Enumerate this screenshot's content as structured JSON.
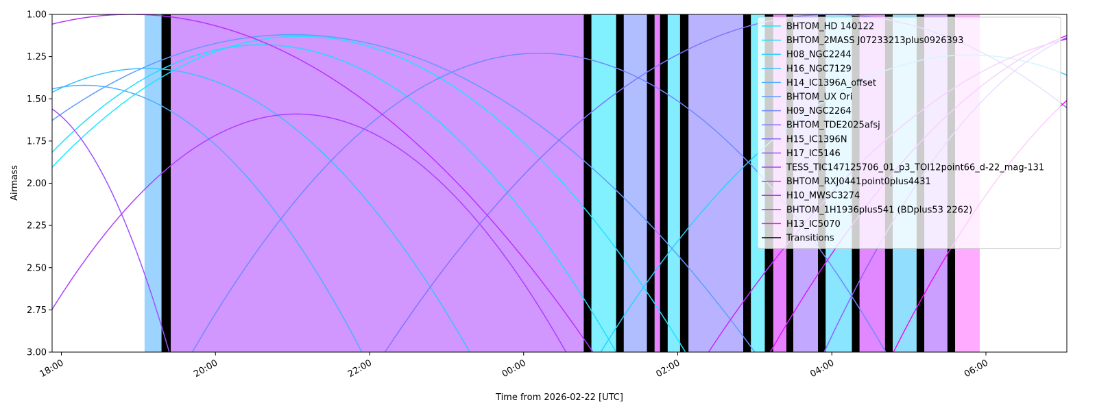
{
  "chart_data": {
    "type": "line",
    "xlabel": "Time from 2026-02-22 [UTC]",
    "ylabel": "Airmass",
    "xlim": [
      17.88,
      31.05
    ],
    "ylim": [
      3.0,
      1.0
    ],
    "y_inverted": true,
    "grid": false,
    "legend_placement": "top-right",
    "x_ticks": [
      {
        "value": 18,
        "label": "18:00"
      },
      {
        "value": 20,
        "label": "20:00"
      },
      {
        "value": 22,
        "label": "22:00"
      },
      {
        "value": 24,
        "label": "00:00"
      },
      {
        "value": 26,
        "label": "02:00"
      },
      {
        "value": 28,
        "label": "04:00"
      },
      {
        "value": 30,
        "label": "06:00"
      }
    ],
    "y_ticks": [
      {
        "value": 1.0,
        "label": "1.00"
      },
      {
        "value": 1.25,
        "label": "1.25"
      },
      {
        "value": 1.5,
        "label": "1.50"
      },
      {
        "value": 1.75,
        "label": "1.75"
      },
      {
        "value": 2.0,
        "label": "2.00"
      },
      {
        "value": 2.25,
        "label": "2.25"
      },
      {
        "value": 2.5,
        "label": "2.50"
      },
      {
        "value": 2.75,
        "label": "2.75"
      },
      {
        "value": 3.0,
        "label": "3.00"
      }
    ],
    "series": [
      {
        "name": "BHTOM_HD 140122",
        "color": "#1ae5ff",
        "fill": "#1ae5ff",
        "transit": 21.1,
        "min": 1.13,
        "halfwidth": 5.0
      },
      {
        "name": "BHTOM_2MASS J07233213plus0926393",
        "color": "#1fdcff",
        "fill": "#1fdcff",
        "transit": 20.6,
        "min": 1.18,
        "halfwidth": 4.6
      },
      {
        "name": "H08_NGC2244",
        "color": "#2ad0ff",
        "fill": "#2ad0ff",
        "transit": 29.8,
        "min": 1.24,
        "halfwidth": 4.8
      },
      {
        "name": "H16_NGC7129",
        "color": "#38c2ff",
        "fill": "#38c2ff",
        "transit": 19.1,
        "min": 1.32,
        "halfwidth": 4.2
      },
      {
        "name": "H14_IC1396A_offset",
        "color": "#4ab0ff",
        "fill": "#4ab0ff",
        "transit": 18.3,
        "min": 1.42,
        "halfwidth": 3.6
      },
      {
        "name": "BHTOM_UX Ori",
        "color": "#5e9cff",
        "fill": "#5e9cff",
        "transit": 21.0,
        "min": 1.12,
        "halfwidth": 6.0
      },
      {
        "name": "H09_NGC2264",
        "color": "#7088ff",
        "fill": "#7088ff",
        "transit": 24.2,
        "min": 1.23,
        "halfwidth": 4.5
      },
      {
        "name": "BHTOM_TDE2025afsj",
        "color": "#8074ff",
        "fill": "#8074ff",
        "transit": 28.0,
        "min": 1.0,
        "halfwidth": 5.8
      },
      {
        "name": "H15_IC1396N",
        "color": "#8f62ff",
        "fill": "#8f62ff",
        "transit": 31.9,
        "min": 1.05,
        "halfwidth": 4.0
      },
      {
        "name": "H17_IC5146",
        "color": "#9e50ff",
        "fill": "#9e50ff",
        "transit": 17.5,
        "min": 1.5,
        "halfwidth": 1.9
      },
      {
        "name": "TESS_TIC147125706_01_p3_TOI12point66_d-22_mag-131",
        "color": "#ad3fff",
        "fill": "#ad3fff",
        "transit": 21.05,
        "min": 1.59,
        "halfwidth": 3.5
      },
      {
        "name": "BHTOM_RXJ0441point0plus4431",
        "color": "#ba30ff",
        "fill": "#ba30ff",
        "transit": 18.9,
        "min": 1.0,
        "halfwidth": 6.0
      },
      {
        "name": "H10_MWSC3274",
        "color": "#c824ff",
        "fill": "#c824ff",
        "transit": 31.9,
        "min": 1.1,
        "halfwidth": 5.5
      },
      {
        "name": "BHTOM_1H1936plus541 (BDplus53 2262)",
        "color": "#d61aff",
        "fill": "#d61aff",
        "transit": 32.2,
        "min": 1.02,
        "halfwidth": 5.0
      },
      {
        "name": "H13_IC5070",
        "color": "#f20df2",
        "fill": "#ff66ff",
        "transit": 33.0,
        "min": 1.1,
        "halfwidth": 4.2
      }
    ],
    "transitions_label": "Transitions",
    "bands": [
      {
        "start": 19.08,
        "end": 19.3,
        "series": 4
      },
      {
        "start": 19.3,
        "end": 19.42,
        "series": -1
      },
      {
        "start": 19.42,
        "end": 24.78,
        "series": 10
      },
      {
        "start": 24.78,
        "end": 24.88,
        "series": -1
      },
      {
        "start": 24.88,
        "end": 25.2,
        "series": 0
      },
      {
        "start": 25.2,
        "end": 25.3,
        "series": -1
      },
      {
        "start": 25.3,
        "end": 25.6,
        "series": 6
      },
      {
        "start": 25.6,
        "end": 25.7,
        "series": -1
      },
      {
        "start": 25.7,
        "end": 25.77,
        "series": 13
      },
      {
        "start": 25.77,
        "end": 25.87,
        "series": -1
      },
      {
        "start": 25.87,
        "end": 26.03,
        "series": 1
      },
      {
        "start": 26.03,
        "end": 26.14,
        "series": -1
      },
      {
        "start": 26.14,
        "end": 26.85,
        "series": 7
      },
      {
        "start": 26.85,
        "end": 26.95,
        "series": -1
      },
      {
        "start": 26.95,
        "end": 27.13,
        "series": 0
      },
      {
        "start": 27.13,
        "end": 27.24,
        "series": -1
      },
      {
        "start": 27.24,
        "end": 27.41,
        "series": 13
      },
      {
        "start": 27.41,
        "end": 27.5,
        "series": -1
      },
      {
        "start": 27.5,
        "end": 27.82,
        "series": 8
      },
      {
        "start": 27.82,
        "end": 27.92,
        "series": -1
      },
      {
        "start": 27.92,
        "end": 28.26,
        "series": 2
      },
      {
        "start": 28.26,
        "end": 28.36,
        "series": -1
      },
      {
        "start": 28.36,
        "end": 28.69,
        "series": 12
      },
      {
        "start": 28.69,
        "end": 28.79,
        "series": -1
      },
      {
        "start": 28.79,
        "end": 29.1,
        "series": 3
      },
      {
        "start": 29.1,
        "end": 29.2,
        "series": -1
      },
      {
        "start": 29.2,
        "end": 29.5,
        "series": 9
      },
      {
        "start": 29.5,
        "end": 29.6,
        "series": -1
      },
      {
        "start": 29.6,
        "end": 29.92,
        "series": 14
      }
    ]
  }
}
